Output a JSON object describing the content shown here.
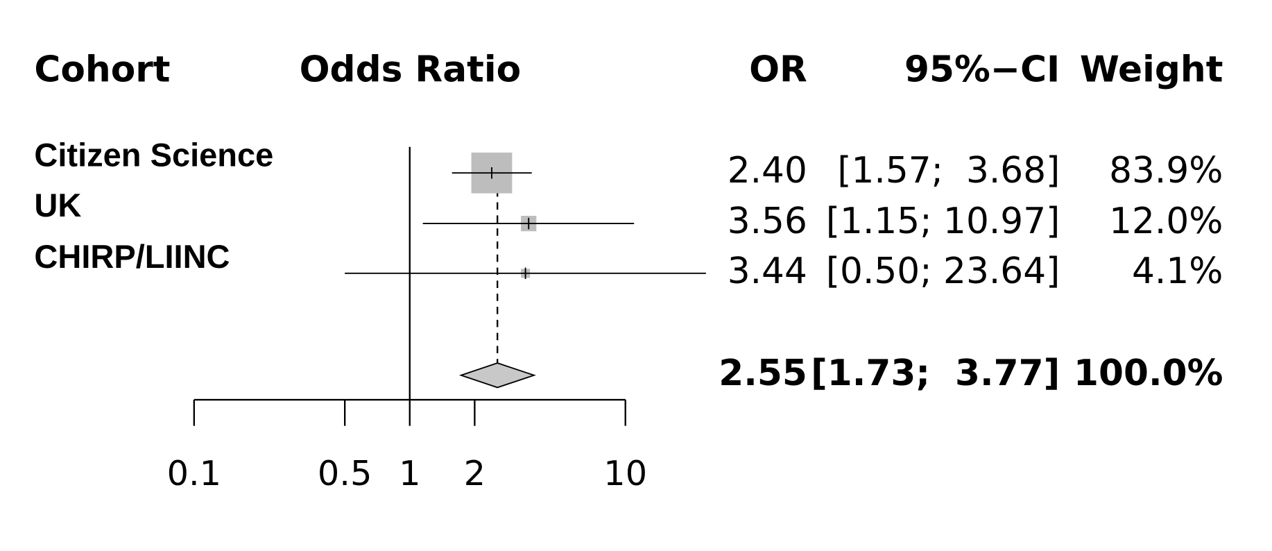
{
  "chart_data": {
    "type": "forest",
    "headers": {
      "cohort": "Cohort",
      "plot": "Odds Ratio",
      "or": "OR",
      "ci": "95%−CI",
      "weight": "Weight"
    },
    "categories": [
      "Citizen Science",
      "UK",
      "CHIRP/LIINC"
    ],
    "or": {
      "values": [
        2.4,
        3.56,
        3.44
      ],
      "value_labels": [
        "2.40",
        "3.56",
        "3.44"
      ]
    },
    "ci_lower": {
      "values": [
        1.57,
        1.15,
        0.5
      ]
    },
    "ci_upper": {
      "values": [
        3.68,
        10.97,
        23.64
      ]
    },
    "ci_labels": [
      "[1.57;  3.68]",
      "[1.15; 10.97]",
      "[0.50; 23.64]"
    ],
    "weights": {
      "values": [
        83.9,
        12.0,
        4.1
      ],
      "value_labels": [
        "83.9%",
        "12.0%",
        "4.1%"
      ]
    },
    "pooled": {
      "or": 2.55,
      "or_label": "2.55",
      "ci_lower": 1.73,
      "ci_upper": 3.77,
      "ci_label": "[1.73;  3.77]",
      "weight": 100.0,
      "weight_label": "100.0%"
    },
    "reference_line": 1,
    "xlim": [
      0.1,
      10
    ],
    "xticks": [
      0.1,
      0.5,
      1,
      2,
      10
    ],
    "log_scale": true,
    "square_color": "#bdbdbd",
    "diamond_color": "#c8c8c8"
  }
}
